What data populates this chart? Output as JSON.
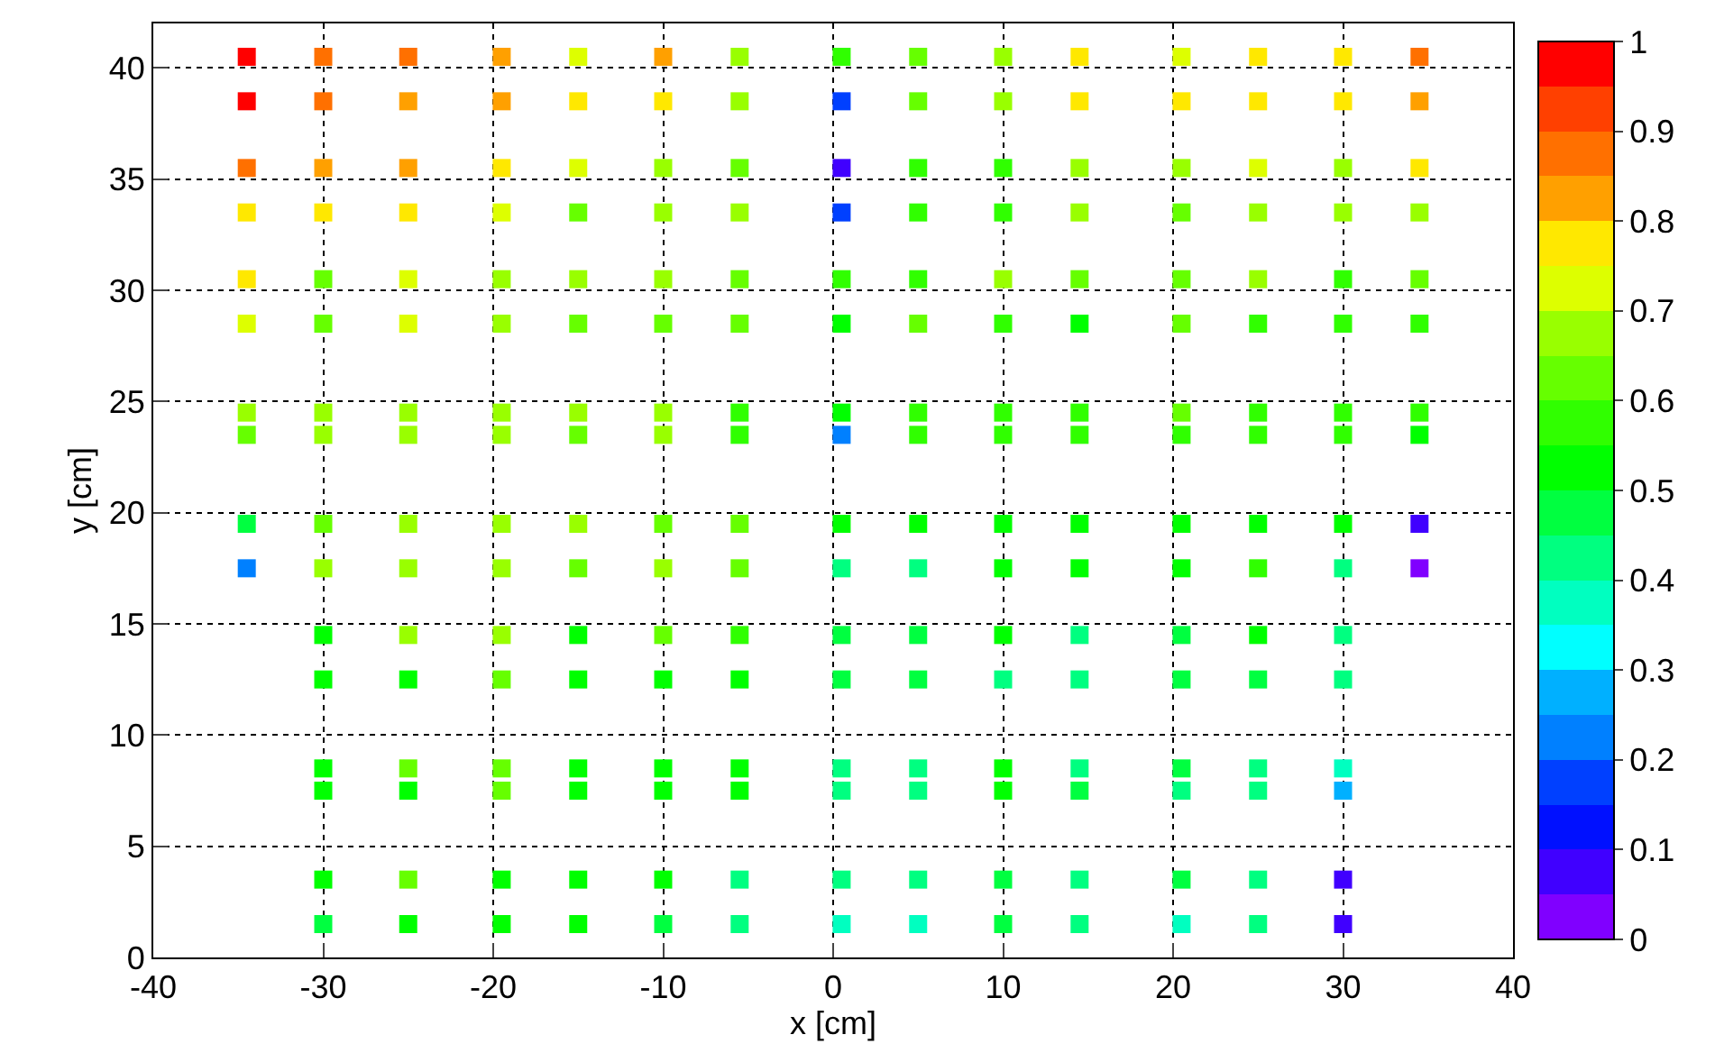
{
  "chart_data": {
    "type": "scatter",
    "xlabel": "x [cm]",
    "ylabel": "y [cm]",
    "xlim": [
      -40,
      40
    ],
    "ylim": [
      0,
      42
    ],
    "xticks": [
      -40,
      -30,
      -20,
      -10,
      0,
      10,
      20,
      30,
      40
    ],
    "yticks": [
      0,
      5,
      10,
      15,
      20,
      25,
      30,
      35,
      40
    ],
    "clim": [
      0,
      1
    ],
    "cticks": [
      0,
      0.1,
      0.2,
      0.3,
      0.4,
      0.5,
      0.6,
      0.7,
      0.8,
      0.9,
      1
    ],
    "grid": true,
    "legend": false,
    "marker": "square",
    "x": [
      -34.5,
      -30,
      -25,
      -19.5,
      -15,
      -10,
      -5.5,
      0.5,
      5,
      10,
      14.5,
      20.5,
      25,
      30,
      34.5,
      -34.5,
      -30,
      -25,
      -19.5,
      -15,
      -10,
      -5.5,
      0.5,
      5,
      10,
      14.5,
      20.5,
      25,
      30,
      34.5,
      -34.5,
      -30,
      -25,
      -19.5,
      -15,
      -10,
      -5.5,
      0.5,
      5,
      10,
      14.5,
      20.5,
      25,
      30,
      34.5,
      -34.5,
      -30,
      -25,
      -19.5,
      -15,
      -10,
      -5.5,
      0.5,
      5,
      10,
      14.5,
      20.5,
      25,
      30,
      34.5,
      -34.5,
      -30,
      -25,
      -19.5,
      -15,
      -10,
      -5.5,
      0.5,
      5,
      10,
      14.5,
      20.5,
      25,
      30,
      34.5,
      -34.5,
      -30,
      -25,
      -19.5,
      -15,
      -10,
      -5.5,
      0.5,
      5,
      10,
      14.5,
      20.5,
      25,
      30,
      34.5,
      -34.5,
      -30,
      -25,
      -19.5,
      -15,
      -10,
      -5.5,
      0.5,
      5,
      10,
      14.5,
      20.5,
      25,
      30,
      34.5,
      -34.5,
      -30,
      -25,
      -19.5,
      -15,
      -10,
      -5.5,
      0.5,
      5,
      10,
      14.5,
      20.5,
      25,
      30,
      34.5,
      -34.5,
      -30,
      -25,
      -19.5,
      -15,
      -10,
      -5.5,
      0.5,
      5,
      10,
      14.5,
      20.5,
      25,
      30,
      34.5,
      -34.5,
      -30,
      -25,
      -19.5,
      -15,
      -10,
      -5.5,
      0.5,
      5,
      10,
      14.5,
      20.5,
      25,
      30,
      34.5,
      -30,
      -25,
      -19.5,
      -15,
      -10,
      -5.5,
      0.5,
      5,
      10,
      14.5,
      20.5,
      25,
      30,
      -30,
      -25,
      -19.5,
      -15,
      -10,
      -5.5,
      0.5,
      5,
      10,
      14.5,
      20.5,
      25,
      30,
      -30,
      -25,
      -19.5,
      -15,
      -10,
      -5.5,
      0.5,
      5,
      10,
      14.5,
      20.5,
      25,
      30,
      -30,
      -25,
      -19.5,
      -15,
      -10,
      -5.5,
      0.5,
      5,
      10,
      14.5,
      20.5,
      25,
      30,
      -30,
      -25,
      -19.5,
      -15,
      -10,
      -5.5,
      0.5,
      5,
      10,
      14.5,
      20.5,
      25,
      30,
      -30,
      -25,
      -19.5,
      -15,
      -10,
      -5.5,
      0.5,
      5,
      10,
      14.5,
      20.5,
      25,
      30
    ],
    "values": [
      40.5,
      40.5,
      40.5,
      40.5,
      40.5,
      40.5,
      40.5,
      40.5,
      40.5,
      40.5,
      40.5,
      40.5,
      40.5,
      40.5,
      40.5,
      38.5,
      38.5,
      38.5,
      38.5,
      38.5,
      38.5,
      38.5,
      38.5,
      38.5,
      38.5,
      38.5,
      38.5,
      38.5,
      38.5,
      38.5,
      35.5,
      35.5,
      35.5,
      35.5,
      35.5,
      35.5,
      35.5,
      35.5,
      35.5,
      35.5,
      35.5,
      35.5,
      35.5,
      35.5,
      35.5,
      33.5,
      33.5,
      33.5,
      33.5,
      33.5,
      33.5,
      33.5,
      33.5,
      33.5,
      33.5,
      33.5,
      33.5,
      33.5,
      33.5,
      33.5,
      30.5,
      30.5,
      30.5,
      30.5,
      30.5,
      30.5,
      30.5,
      30.5,
      30.5,
      30.5,
      30.5,
      30.5,
      30.5,
      30.5,
      30.5,
      28.5,
      28.5,
      28.5,
      28.5,
      28.5,
      28.5,
      28.5,
      28.5,
      28.5,
      28.5,
      28.5,
      28.5,
      28.5,
      28.5,
      28.5,
      24.5,
      24.5,
      24.5,
      24.5,
      24.5,
      24.5,
      24.5,
      24.5,
      24.5,
      24.5,
      24.5,
      24.5,
      24.5,
      24.5,
      24.5,
      23.5,
      23.5,
      23.5,
      23.5,
      23.5,
      23.5,
      23.5,
      23.5,
      23.5,
      23.5,
      23.5,
      23.5,
      23.5,
      23.5,
      23.5,
      19.5,
      19.5,
      19.5,
      19.5,
      19.5,
      19.5,
      19.5,
      19.5,
      19.5,
      19.5,
      19.5,
      19.5,
      19.5,
      19.5,
      19.5,
      17.5,
      17.5,
      17.5,
      17.5,
      17.5,
      17.5,
      17.5,
      17.5,
      17.5,
      17.5,
      17.5,
      17.5,
      17.5,
      17.5,
      17.5,
      14.5,
      14.5,
      14.5,
      14.5,
      14.5,
      14.5,
      14.5,
      14.5,
      14.5,
      14.5,
      14.5,
      14.5,
      14.5,
      12.5,
      12.5,
      12.5,
      12.5,
      12.5,
      12.5,
      12.5,
      12.5,
      12.5,
      12.5,
      12.5,
      12.5,
      12.5,
      8.5,
      8.5,
      8.5,
      8.5,
      8.5,
      8.5,
      8.5,
      8.5,
      8.5,
      8.5,
      8.5,
      8.5,
      8.5,
      7.5,
      7.5,
      7.5,
      7.5,
      7.5,
      7.5,
      7.5,
      7.5,
      7.5,
      7.5,
      7.5,
      7.5,
      7.5,
      3.5,
      3.5,
      3.5,
      3.5,
      3.5,
      3.5,
      3.5,
      3.5,
      3.5,
      3.5,
      3.5,
      3.5,
      3.5,
      1.5,
      1.5,
      1.5,
      1.5,
      1.5,
      1.5,
      1.5,
      1.5,
      1.5,
      1.5,
      1.5,
      1.5,
      1.5
    ],
    "cvalues": [
      0.97,
      0.87,
      0.87,
      0.82,
      0.72,
      0.82,
      0.67,
      0.57,
      0.62,
      0.67,
      0.77,
      0.72,
      0.77,
      0.77,
      0.87,
      0.97,
      0.87,
      0.82,
      0.82,
      0.77,
      0.77,
      0.67,
      0.17,
      0.62,
      0.67,
      0.77,
      0.77,
      0.77,
      0.77,
      0.82,
      0.87,
      0.82,
      0.82,
      0.77,
      0.72,
      0.67,
      0.62,
      0.07,
      0.57,
      0.57,
      0.67,
      0.67,
      0.72,
      0.67,
      0.77,
      0.77,
      0.77,
      0.77,
      0.72,
      0.62,
      0.67,
      0.67,
      0.17,
      0.57,
      0.57,
      0.67,
      0.62,
      0.67,
      0.67,
      0.67,
      0.77,
      0.62,
      0.72,
      0.67,
      0.67,
      0.67,
      0.62,
      0.57,
      0.57,
      0.67,
      0.62,
      0.62,
      0.67,
      0.57,
      0.62,
      0.72,
      0.62,
      0.72,
      0.67,
      0.62,
      0.62,
      0.62,
      0.52,
      0.62,
      0.57,
      0.52,
      0.62,
      0.57,
      0.57,
      0.57,
      0.67,
      0.67,
      0.67,
      0.67,
      0.67,
      0.67,
      0.57,
      0.52,
      0.57,
      0.57,
      0.57,
      0.62,
      0.57,
      0.57,
      0.57,
      0.62,
      0.67,
      0.67,
      0.67,
      0.62,
      0.67,
      0.57,
      0.22,
      0.57,
      0.57,
      0.57,
      0.57,
      0.57,
      0.57,
      0.52,
      0.47,
      0.62,
      0.67,
      0.67,
      0.67,
      0.62,
      0.62,
      0.52,
      0.52,
      0.52,
      0.52,
      0.52,
      0.52,
      0.52,
      0.07,
      0.22,
      0.67,
      0.67,
      0.67,
      0.62,
      0.67,
      0.62,
      0.42,
      0.42,
      0.52,
      0.52,
      0.52,
      0.57,
      0.42,
      0.02,
      0.52,
      0.67,
      0.67,
      0.52,
      0.62,
      0.57,
      0.47,
      0.47,
      0.52,
      0.42,
      0.47,
      0.52,
      0.42,
      0.52,
      0.52,
      0.62,
      0.52,
      0.52,
      0.52,
      0.47,
      0.47,
      0.42,
      0.42,
      0.47,
      0.47,
      0.42,
      0.52,
      0.62,
      0.62,
      0.52,
      0.52,
      0.52,
      0.42,
      0.42,
      0.52,
      0.42,
      0.47,
      0.42,
      0.37,
      0.52,
      0.52,
      0.62,
      0.52,
      0.52,
      0.52,
      0.42,
      0.42,
      0.52,
      0.47,
      0.42,
      0.42,
      0.27,
      0.52,
      0.62,
      0.52,
      0.52,
      0.52,
      0.42,
      0.42,
      0.42,
      0.47,
      0.42,
      0.47,
      0.42,
      0.07,
      0.47,
      0.52,
      0.52,
      0.52,
      0.47,
      0.42,
      0.37,
      0.37,
      0.47,
      0.42,
      0.37,
      0.42,
      0.07
    ]
  }
}
